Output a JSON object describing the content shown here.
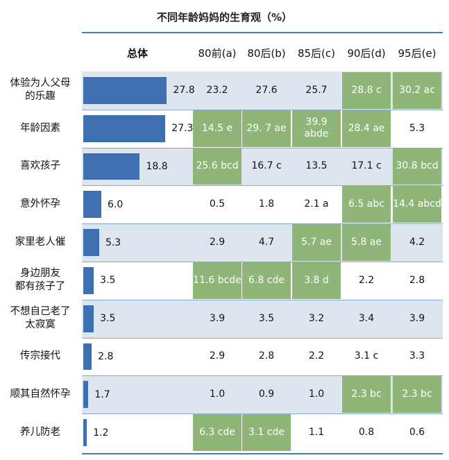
{
  "chart_data": {
    "type": "table",
    "title": "不同年龄妈妈的生育观（%）",
    "total_label": "总体",
    "columns": [
      "80前(a)",
      "80后(b)",
      "85后(c)",
      "90后(d)",
      "95后(e)"
    ],
    "bar_max": 30,
    "rows": [
      {
        "label": "体验为人父母的乐趣",
        "label_lines": [
          "体验为人父母",
          "的乐趣"
        ],
        "total": 27.8,
        "total_text": "27.8",
        "cells": [
          {
            "text": "23.2",
            "hl": false
          },
          {
            "text": "27.6",
            "hl": false
          },
          {
            "text": "25.7",
            "hl": false
          },
          {
            "text": "28.8 c",
            "hl": true
          },
          {
            "text": "30.2 ac",
            "hl": true
          }
        ]
      },
      {
        "label": "年龄因素",
        "label_lines": [
          "年龄因素"
        ],
        "total": 27.3,
        "total_text": "27.3",
        "cells": [
          {
            "text": "14.5 e",
            "hl": true
          },
          {
            "text": "29. 7 ae",
            "hl": true
          },
          {
            "text": "39.9 abde",
            "hl": true
          },
          {
            "text": "28.4 ae",
            "hl": true
          },
          {
            "text": "5.3",
            "hl": false
          }
        ]
      },
      {
        "label": "喜欢孩子",
        "label_lines": [
          "喜欢孩子"
        ],
        "total": 18.8,
        "total_text": "18.8",
        "cells": [
          {
            "text": "25.6 bcd",
            "hl": true
          },
          {
            "text": "16.7 c",
            "hl": false
          },
          {
            "text": "13.5",
            "hl": false
          },
          {
            "text": "17.1 c",
            "hl": false
          },
          {
            "text": "30.8 bcd",
            "hl": true
          }
        ]
      },
      {
        "label": "意外怀孕",
        "label_lines": [
          "意外怀孕"
        ],
        "total": 6.0,
        "total_text": "6.0",
        "cells": [
          {
            "text": "0.5",
            "hl": false
          },
          {
            "text": "1.8",
            "hl": false
          },
          {
            "text": "2.1 a",
            "hl": false
          },
          {
            "text": "6.5 abc",
            "hl": true
          },
          {
            "text": "14.4 abcd",
            "hl": true
          }
        ]
      },
      {
        "label": "家里老人催",
        "label_lines": [
          "家里老人催"
        ],
        "total": 5.3,
        "total_text": "5.3",
        "cells": [
          {
            "text": "2.9",
            "hl": false
          },
          {
            "text": "4.7",
            "hl": false
          },
          {
            "text": "5.7 ae",
            "hl": true
          },
          {
            "text": "5.8 ae",
            "hl": true
          },
          {
            "text": "4.2",
            "hl": false
          }
        ]
      },
      {
        "label": "身边朋友都有孩子了",
        "label_lines": [
          "身边朋友",
          "都有孩子了"
        ],
        "total": 3.5,
        "total_text": "3.5",
        "cells": [
          {
            "text": "11.6 bcde",
            "hl": true
          },
          {
            "text": "6.8 cde",
            "hl": true
          },
          {
            "text": "3.8 d",
            "hl": true
          },
          {
            "text": "2.2",
            "hl": false
          },
          {
            "text": "2.8",
            "hl": false
          }
        ]
      },
      {
        "label": "不想自己老了太寂寞",
        "label_lines": [
          "不想自己老了",
          "太寂寞"
        ],
        "total": 3.5,
        "total_text": "3.5",
        "cells": [
          {
            "text": "3.9",
            "hl": false
          },
          {
            "text": "3.5",
            "hl": false
          },
          {
            "text": "3.2",
            "hl": false
          },
          {
            "text": "3.4",
            "hl": false
          },
          {
            "text": "3.9",
            "hl": false
          }
        ]
      },
      {
        "label": "传宗接代",
        "label_lines": [
          "传宗接代"
        ],
        "total": 2.8,
        "total_text": "2.8",
        "cells": [
          {
            "text": "2.9",
            "hl": false
          },
          {
            "text": "2.8",
            "hl": false
          },
          {
            "text": "2.2",
            "hl": false
          },
          {
            "text": "3.1 c",
            "hl": false
          },
          {
            "text": "3.3",
            "hl": false
          }
        ]
      },
      {
        "label": "顺其自然怀孕",
        "label_lines": [
          "顺其自然怀孕"
        ],
        "total": 1.7,
        "total_text": "1.7",
        "cells": [
          {
            "text": "1.0",
            "hl": false
          },
          {
            "text": "0.9",
            "hl": false
          },
          {
            "text": "1.0",
            "hl": false
          },
          {
            "text": "2.3 bc",
            "hl": true
          },
          {
            "text": "2.3 bc",
            "hl": true
          }
        ]
      },
      {
        "label": "养儿防老",
        "label_lines": [
          "养儿防老"
        ],
        "total": 1.2,
        "total_text": "1.2",
        "cells": [
          {
            "text": "6.3 cde",
            "hl": true
          },
          {
            "text": "3.1 cde",
            "hl": true
          },
          {
            "text": "1.1",
            "hl": false
          },
          {
            "text": "0.8",
            "hl": false
          },
          {
            "text": "0.6",
            "hl": false
          }
        ]
      }
    ],
    "colors": {
      "bar": "#3e6fb0",
      "highlight": "#8fb579",
      "row_shade": "#dde6ef",
      "rule": "#4a7ab8"
    }
  }
}
